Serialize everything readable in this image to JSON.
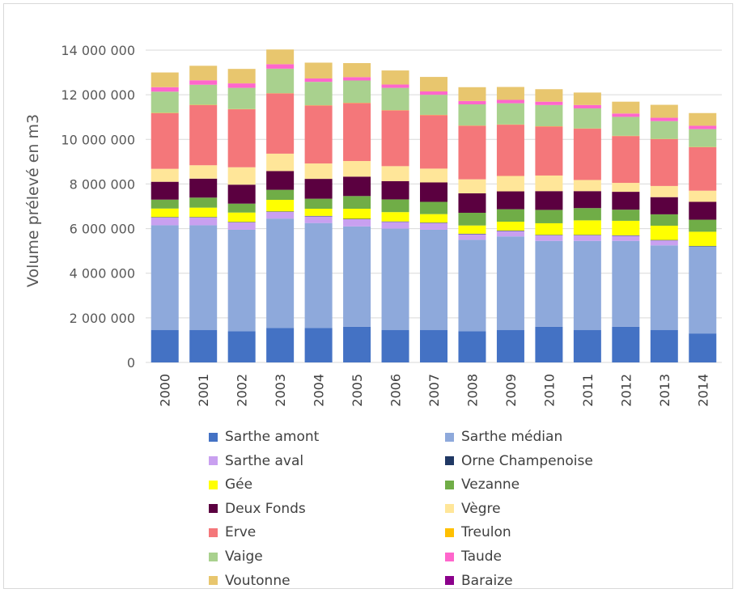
{
  "chart_data": {
    "type": "bar",
    "stacked": true,
    "ylabel": "Volume prélevé en m3",
    "ylim": [
      0,
      14000000
    ],
    "yticks": [
      "0",
      "2 000 000",
      "4 000 000",
      "6 000 000",
      "8 000 000",
      "10 000 000",
      "12 000 000",
      "14 000 000"
    ],
    "yticks_values": [
      0,
      2000000,
      4000000,
      6000000,
      8000000,
      10000000,
      12000000,
      14000000
    ],
    "grid": true,
    "legend_position": "bottom",
    "categories": [
      "2000",
      "2001",
      "2002",
      "2003",
      "2004",
      "2005",
      "2006",
      "2007",
      "2008",
      "2009",
      "2010",
      "2011",
      "2012",
      "2013",
      "2014"
    ],
    "series": [
      {
        "name": "Sarthe amont",
        "color": "#4472C4",
        "values": [
          1450000,
          1450000,
          1400000,
          1550000,
          1550000,
          1600000,
          1450000,
          1450000,
          1400000,
          1450000,
          1600000,
          1450000,
          1600000,
          1450000,
          1300000
        ]
      },
      {
        "name": "Sarthe médian",
        "color": "#8EA9DB",
        "values": [
          4700000,
          4700000,
          4550000,
          4900000,
          4700000,
          4500000,
          4550000,
          4500000,
          4100000,
          4200000,
          3850000,
          4000000,
          3850000,
          3800000,
          3900000
        ]
      },
      {
        "name": "Sarthe aval",
        "color": "#C9A0F0",
        "values": [
          350000,
          350000,
          330000,
          300000,
          300000,
          320000,
          300000,
          300000,
          250000,
          240000,
          250000,
          250000,
          230000,
          220000,
          0
        ]
      },
      {
        "name": "Orne Champenoise",
        "color": "#203864",
        "values": [
          20000,
          20000,
          20000,
          20000,
          20000,
          20000,
          20000,
          20000,
          20000,
          20000,
          20000,
          20000,
          20000,
          20000,
          20000
        ]
      },
      {
        "name": "Gée",
        "color": "#FFFF00",
        "values": [
          380000,
          420000,
          420000,
          520000,
          320000,
          450000,
          420000,
          380000,
          370000,
          400000,
          520000,
          650000,
          650000,
          640000,
          640000
        ]
      },
      {
        "name": "Vezanne",
        "color": "#70AD47",
        "values": [
          400000,
          450000,
          400000,
          450000,
          450000,
          570000,
          570000,
          550000,
          570000,
          560000,
          600000,
          550000,
          500000,
          510000,
          540000
        ]
      },
      {
        "name": "Deux Fonds",
        "color": "#5B0040",
        "values": [
          800000,
          850000,
          850000,
          840000,
          890000,
          870000,
          820000,
          870000,
          870000,
          800000,
          840000,
          760000,
          800000,
          770000,
          800000
        ]
      },
      {
        "name": "Vègre",
        "color": "#FFE699",
        "values": [
          580000,
          600000,
          780000,
          780000,
          690000,
          700000,
          670000,
          620000,
          630000,
          690000,
          700000,
          500000,
          400000,
          500000,
          500000
        ]
      },
      {
        "name": "Erve",
        "color": "#F4777A",
        "values": [
          2500000,
          2700000,
          2600000,
          2700000,
          2600000,
          2600000,
          2500000,
          2400000,
          2400000,
          2300000,
          2200000,
          2300000,
          2100000,
          2100000,
          1950000
        ]
      },
      {
        "name": "Treulon",
        "color": "#FFC000",
        "values": [
          10000,
          10000,
          10000,
          10000,
          10000,
          10000,
          10000,
          10000,
          10000,
          10000,
          10000,
          10000,
          10000,
          10000,
          10000
        ]
      },
      {
        "name": "Vaige",
        "color": "#A9D18E",
        "values": [
          950000,
          900000,
          950000,
          1100000,
          1050000,
          1000000,
          1000000,
          900000,
          950000,
          950000,
          950000,
          900000,
          850000,
          800000,
          800000
        ]
      },
      {
        "name": "Taude",
        "color": "#FF66CC",
        "values": [
          200000,
          200000,
          200000,
          200000,
          150000,
          150000,
          150000,
          150000,
          150000,
          150000,
          150000,
          150000,
          150000,
          150000,
          150000
        ]
      },
      {
        "name": "Voutonne",
        "color": "#E8C66E",
        "values": [
          660000,
          650000,
          650000,
          660000,
          710000,
          630000,
          630000,
          650000,
          620000,
          580000,
          560000,
          560000,
          530000,
          580000,
          570000
        ]
      },
      {
        "name": "Baraize",
        "color": "#8B008B",
        "values": [
          0,
          0,
          0,
          0,
          0,
          0,
          0,
          0,
          0,
          0,
          0,
          0,
          0,
          0,
          0
        ]
      }
    ]
  }
}
